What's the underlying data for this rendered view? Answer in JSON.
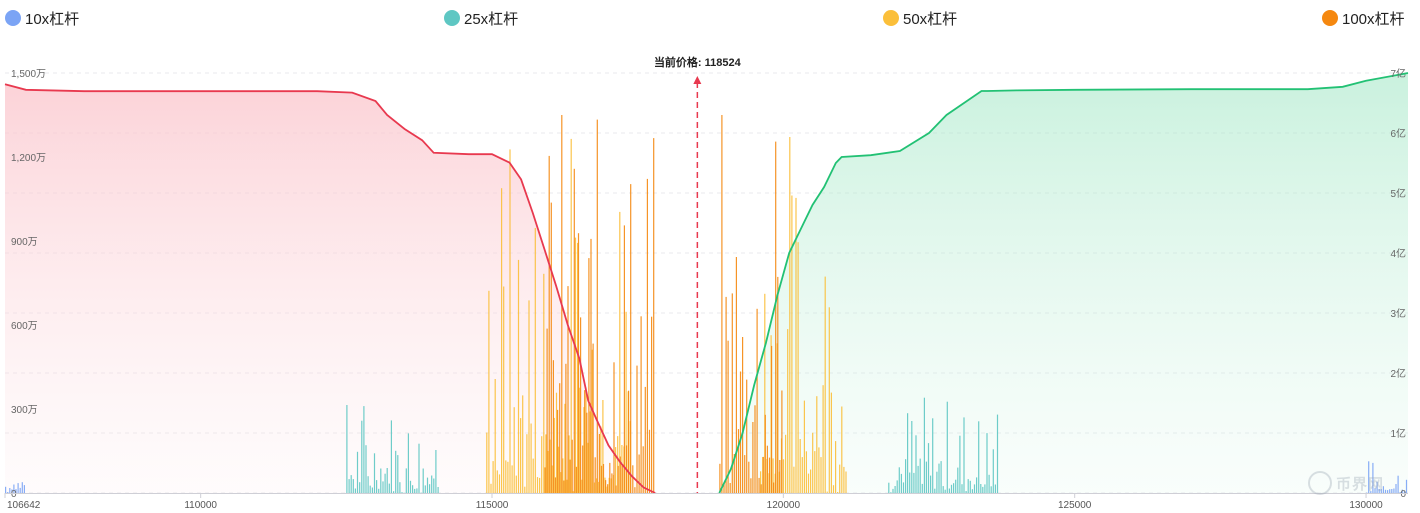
{
  "legend": [
    {
      "label": "10x杠杆",
      "color": "#7ba4f5"
    },
    {
      "label": "25x杠杆",
      "color": "#5ec7c3"
    },
    {
      "label": "50x杠杆",
      "color": "#fbbf3a"
    },
    {
      "label": "100x杠杆",
      "color": "#f5880f"
    }
  ],
  "current_price_label": "当前价格: 118524",
  "watermark_text": "币界网",
  "chart_data": {
    "type": "area",
    "current_price": 118524,
    "x_axis": {
      "range": [
        106642,
        130720
      ],
      "ticks": [
        "106642",
        "110000",
        "115000",
        "120000",
        "125000",
        "130000"
      ],
      "tick_values": [
        106642,
        110000,
        115000,
        120000,
        125000,
        130000
      ]
    },
    "y_left": {
      "range": [
        0,
        15000000
      ],
      "ticks": [
        "0",
        "300万",
        "600万",
        "900万",
        "1,200万",
        "1,500万"
      ],
      "tick_values": [
        0,
        3000000,
        6000000,
        9000000,
        12000000,
        15000000
      ]
    },
    "y_right": {
      "range": [
        0,
        700000000
      ],
      "ticks": [
        "0",
        "1亿",
        "2亿",
        "3亿",
        "4亿",
        "5亿",
        "6亿",
        "7亿"
      ],
      "tick_values": [
        0,
        100000000,
        200000000,
        300000000,
        400000000,
        500000000,
        600000000,
        700000000
      ]
    },
    "grid": true,
    "series": [
      {
        "side": "long",
        "axis": "left",
        "color": "#e8394f",
        "x": [
          106642,
          107000,
          108000,
          110000,
          112000,
          112600,
          113000,
          113200,
          113500,
          113800,
          114000,
          114600,
          115000,
          115300,
          115500,
          115700,
          115900,
          116100,
          116300,
          116500,
          116650,
          116800,
          117000,
          117200,
          117400,
          117600,
          117800
        ],
        "values": [
          14600000,
          14400000,
          14350000,
          14350000,
          14350000,
          14300000,
          14000000,
          13500000,
          13000000,
          12600000,
          12150000,
          12100000,
          12100000,
          11800000,
          11200000,
          10000000,
          8700000,
          7400000,
          6000000,
          4800000,
          3300000,
          2600000,
          1700000,
          1100000,
          600000,
          200000,
          0
        ]
      },
      {
        "side": "short",
        "axis": "right",
        "color": "#22c174",
        "x": [
          118900,
          119100,
          119300,
          119500,
          119700,
          119900,
          120100,
          120300,
          120500,
          120700,
          120900,
          121000,
          121500,
          122000,
          122500,
          122800,
          123100,
          123400,
          123500,
          124000,
          125000,
          127000,
          128000,
          129000,
          129600,
          130000,
          130720
        ],
        "values": [
          0,
          40000000,
          100000000,
          180000000,
          250000000,
          330000000,
          400000000,
          440000000,
          480000000,
          510000000,
          550000000,
          560000000,
          563000000,
          570000000,
          600000000,
          630000000,
          650000000,
          670000000,
          670000000,
          671000000,
          672000000,
          673000000,
          673000000,
          673000000,
          677000000,
          687000000,
          700000000
        ]
      }
    ],
    "liquidation_bars": [
      {
        "leverage": "10x杠杆",
        "color": "#7ba4f5",
        "ranges": [
          [
            106642,
            107000
          ],
          [
            130000,
            130720
          ]
        ],
        "max_share": 0.08
      },
      {
        "leverage": "25x杠杆",
        "color": "#5ec7c3",
        "ranges": [
          [
            112500,
            114100
          ],
          [
            121800,
            123700
          ]
        ],
        "max_share": 0.23
      },
      {
        "leverage": "50x杠杆",
        "color": "#fbbf3a",
        "ranges": [
          [
            114900,
            117400
          ],
          [
            119600,
            121100
          ]
        ],
        "max_share": 0.85
      },
      {
        "leverage": "100x杠杆",
        "color": "#f5880f",
        "ranges": [
          [
            115900,
            117800
          ],
          [
            118900,
            120000
          ]
        ],
        "max_share": 0.9
      }
    ]
  }
}
